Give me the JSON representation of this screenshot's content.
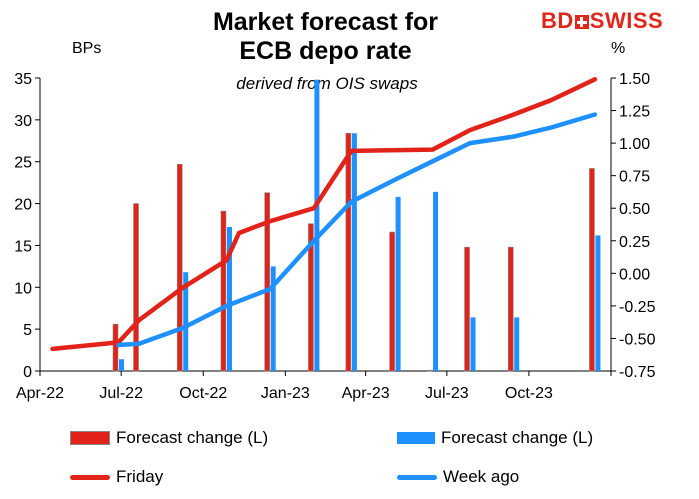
{
  "header": {
    "title_line1": "Market forecast for",
    "title_line2": "ECB depo rate",
    "subtitle": "derived from OIS swaps",
    "logo_left": "BD",
    "logo_right": "SWISS"
  },
  "chart_data": {
    "type": "bar+line",
    "left_axis_label": "BPs",
    "right_axis_label": "%",
    "left_ylim": [
      0,
      35
    ],
    "left_ticks": [
      "0",
      "5",
      "10",
      "15",
      "20",
      "25",
      "30",
      "35"
    ],
    "right_ylim": [
      -0.75,
      1.5
    ],
    "right_ticks": [
      "-0.75",
      "-0.50",
      "-0.25",
      "0.00",
      "0.25",
      "0.50",
      "0.75",
      "1.00",
      "1.25",
      "1.50"
    ],
    "x_tick_labels": [
      "Apr-22",
      "Jul-22",
      "Oct-22",
      "Jan-23",
      "Apr-23",
      "Jul-23",
      "Oct-23"
    ],
    "series": [
      {
        "name": "Forecast change (L)",
        "kind": "bar",
        "color": "#e2231a",
        "points": [
          {
            "date": "2022-06-28",
            "value": 5.6
          },
          {
            "date": "2022-07-21",
            "value": 20.0
          },
          {
            "date": "2022-09-08",
            "value": 24.7
          },
          {
            "date": "2022-10-27",
            "value": 19.1
          },
          {
            "date": "2022-12-15",
            "value": 21.3
          },
          {
            "date": "2023-02-02",
            "value": 17.6
          },
          {
            "date": "2023-03-16",
            "value": 28.4
          },
          {
            "date": "2023-05-04",
            "value": 16.6
          },
          {
            "date": "2023-06-15",
            "value": 0.1
          },
          {
            "date": "2023-07-27",
            "value": 14.8
          },
          {
            "date": "2023-09-14",
            "value": 14.8
          },
          {
            "date": "2023-10-26",
            "value": 0.0
          },
          {
            "date": "2023-12-14",
            "value": 24.2
          }
        ]
      },
      {
        "name": "Forecast change (L)",
        "kind": "bar",
        "color": "#1e90ff",
        "points": [
          {
            "date": "2022-06-28",
            "value": 1.4
          },
          {
            "date": "2022-07-21",
            "value": 0.0
          },
          {
            "date": "2022-09-08",
            "value": 11.8
          },
          {
            "date": "2022-10-27",
            "value": 17.2
          },
          {
            "date": "2022-12-15",
            "value": 12.5
          },
          {
            "date": "2023-02-02",
            "value": 34.8
          },
          {
            "date": "2023-03-16",
            "value": 28.4
          },
          {
            "date": "2023-05-04",
            "value": 20.8
          },
          {
            "date": "2023-06-15",
            "value": 21.4
          },
          {
            "date": "2023-07-27",
            "value": 6.4
          },
          {
            "date": "2023-09-14",
            "value": 6.4
          },
          {
            "date": "2023-10-26",
            "value": 0.0
          },
          {
            "date": "2023-12-14",
            "value": 16.2
          }
        ]
      },
      {
        "name": "Friday",
        "kind": "line",
        "axis": "right",
        "color": "#e2231a",
        "points": [
          {
            "date": "2022-04-15",
            "value": -0.58
          },
          {
            "date": "2022-06-28",
            "value": -0.53
          },
          {
            "date": "2022-07-21",
            "value": -0.36
          },
          {
            "date": "2022-09-08",
            "value": -0.11
          },
          {
            "date": "2022-10-27",
            "value": 0.1
          },
          {
            "date": "2022-11-10",
            "value": 0.31
          },
          {
            "date": "2022-12-15",
            "value": 0.4
          },
          {
            "date": "2023-02-02",
            "value": 0.5
          },
          {
            "date": "2023-03-16",
            "value": 0.94
          },
          {
            "date": "2023-06-15",
            "value": 0.95
          },
          {
            "date": "2023-07-27",
            "value": 1.1
          },
          {
            "date": "2023-09-14",
            "value": 1.22
          },
          {
            "date": "2023-10-26",
            "value": 1.33
          },
          {
            "date": "2023-12-14",
            "value": 1.49
          }
        ]
      },
      {
        "name": "Week ago",
        "kind": "line",
        "axis": "right",
        "color": "#1e90ff",
        "points": [
          {
            "date": "2022-06-28",
            "value": -0.55
          },
          {
            "date": "2022-07-21",
            "value": -0.54
          },
          {
            "date": "2022-09-08",
            "value": -0.42
          },
          {
            "date": "2022-10-27",
            "value": -0.25
          },
          {
            "date": "2022-12-15",
            "value": -0.12
          },
          {
            "date": "2023-02-02",
            "value": 0.25
          },
          {
            "date": "2023-03-16",
            "value": 0.55
          },
          {
            "date": "2023-05-04",
            "value": 0.72
          },
          {
            "date": "2023-06-15",
            "value": 0.86
          },
          {
            "date": "2023-07-27",
            "value": 1.0
          },
          {
            "date": "2023-09-14",
            "value": 1.05
          },
          {
            "date": "2023-10-26",
            "value": 1.12
          },
          {
            "date": "2023-12-14",
            "value": 1.22
          }
        ]
      }
    ],
    "legend": [
      {
        "label": "Forecast change (L)",
        "kind": "bar",
        "color": "#e2231a"
      },
      {
        "label": "Forecast change (L)",
        "kind": "bar",
        "color": "#1e90ff"
      },
      {
        "label": "Friday",
        "kind": "line",
        "color": "#e2231a"
      },
      {
        "label": "Week ago",
        "kind": "line",
        "color": "#1e90ff"
      }
    ],
    "legend_position": "bottom",
    "grid": false
  }
}
